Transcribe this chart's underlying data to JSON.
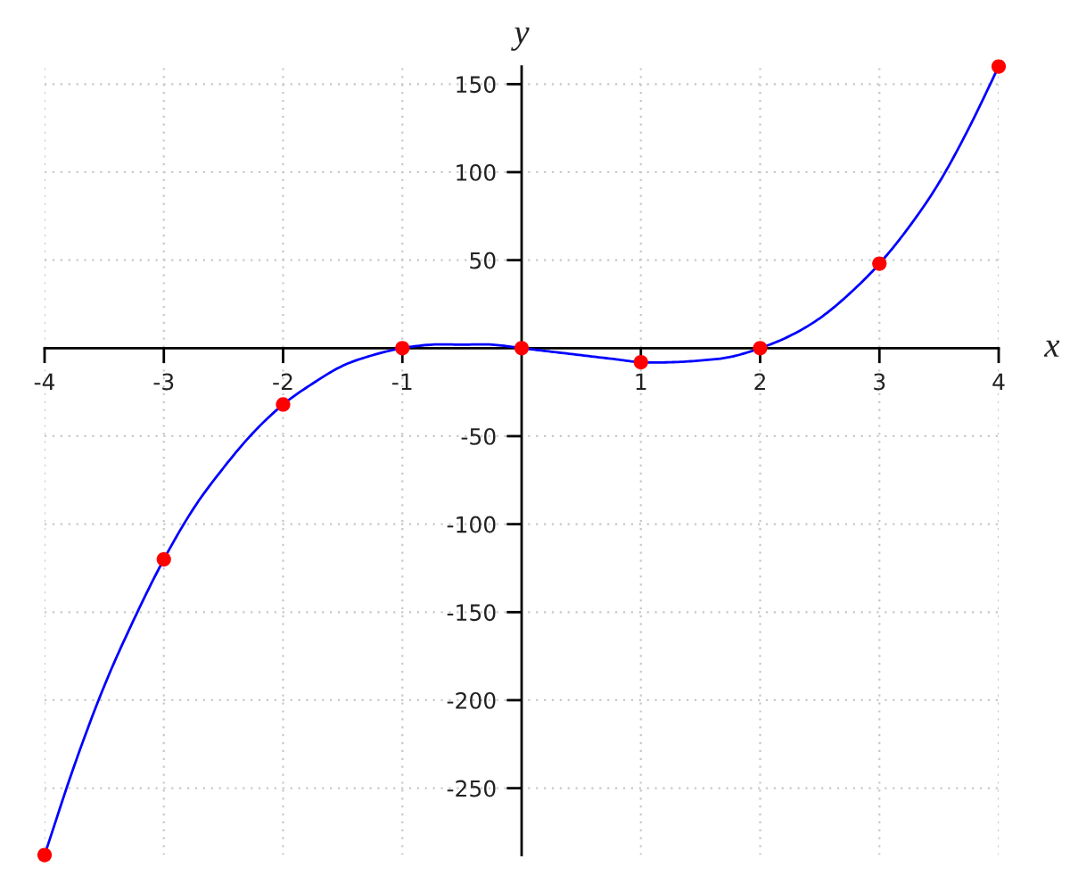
{
  "chart_data": {
    "type": "line",
    "xlabel": "x",
    "ylabel": "y",
    "xlim": [
      -4,
      4
    ],
    "ylim": [
      -288,
      160
    ],
    "xticks": [
      -4,
      -3,
      -2,
      -1,
      1,
      2,
      3,
      4
    ],
    "yticks": [
      -250,
      -200,
      -150,
      -100,
      -50,
      50,
      100,
      150
    ],
    "grid": true,
    "series": [
      {
        "color": "#0000ff",
        "x": [
          -4,
          -3.75,
          -3.5,
          -3.25,
          -3,
          -2.75,
          -2.5,
          -2.25,
          -2,
          -1.75,
          -1.5,
          -1.25,
          -1,
          -0.75,
          -0.5,
          -0.25,
          0,
          0.25,
          0.5,
          0.75,
          1,
          1.25,
          1.5,
          1.75,
          2,
          2.25,
          2.5,
          2.75,
          3,
          3.25,
          3.5,
          3.75,
          4
        ],
        "values": [
          -288,
          -237,
          -192,
          -154,
          -120,
          -91,
          -68,
          -48,
          -32,
          -20,
          -10,
          -4,
          0,
          2,
          2,
          2,
          0,
          -2,
          -4,
          -6,
          -8,
          -8,
          -7,
          -5,
          0,
          7,
          17,
          31,
          48,
          69,
          94,
          125,
          160
        ]
      },
      {
        "type": "scatter",
        "color": "#ff0000",
        "marker": "circle",
        "x": [
          -4,
          -3,
          -2,
          -1,
          0,
          1,
          2,
          3,
          4
        ],
        "values": [
          -288,
          -120,
          -32,
          0,
          0,
          -8,
          0,
          48,
          160
        ]
      }
    ]
  }
}
